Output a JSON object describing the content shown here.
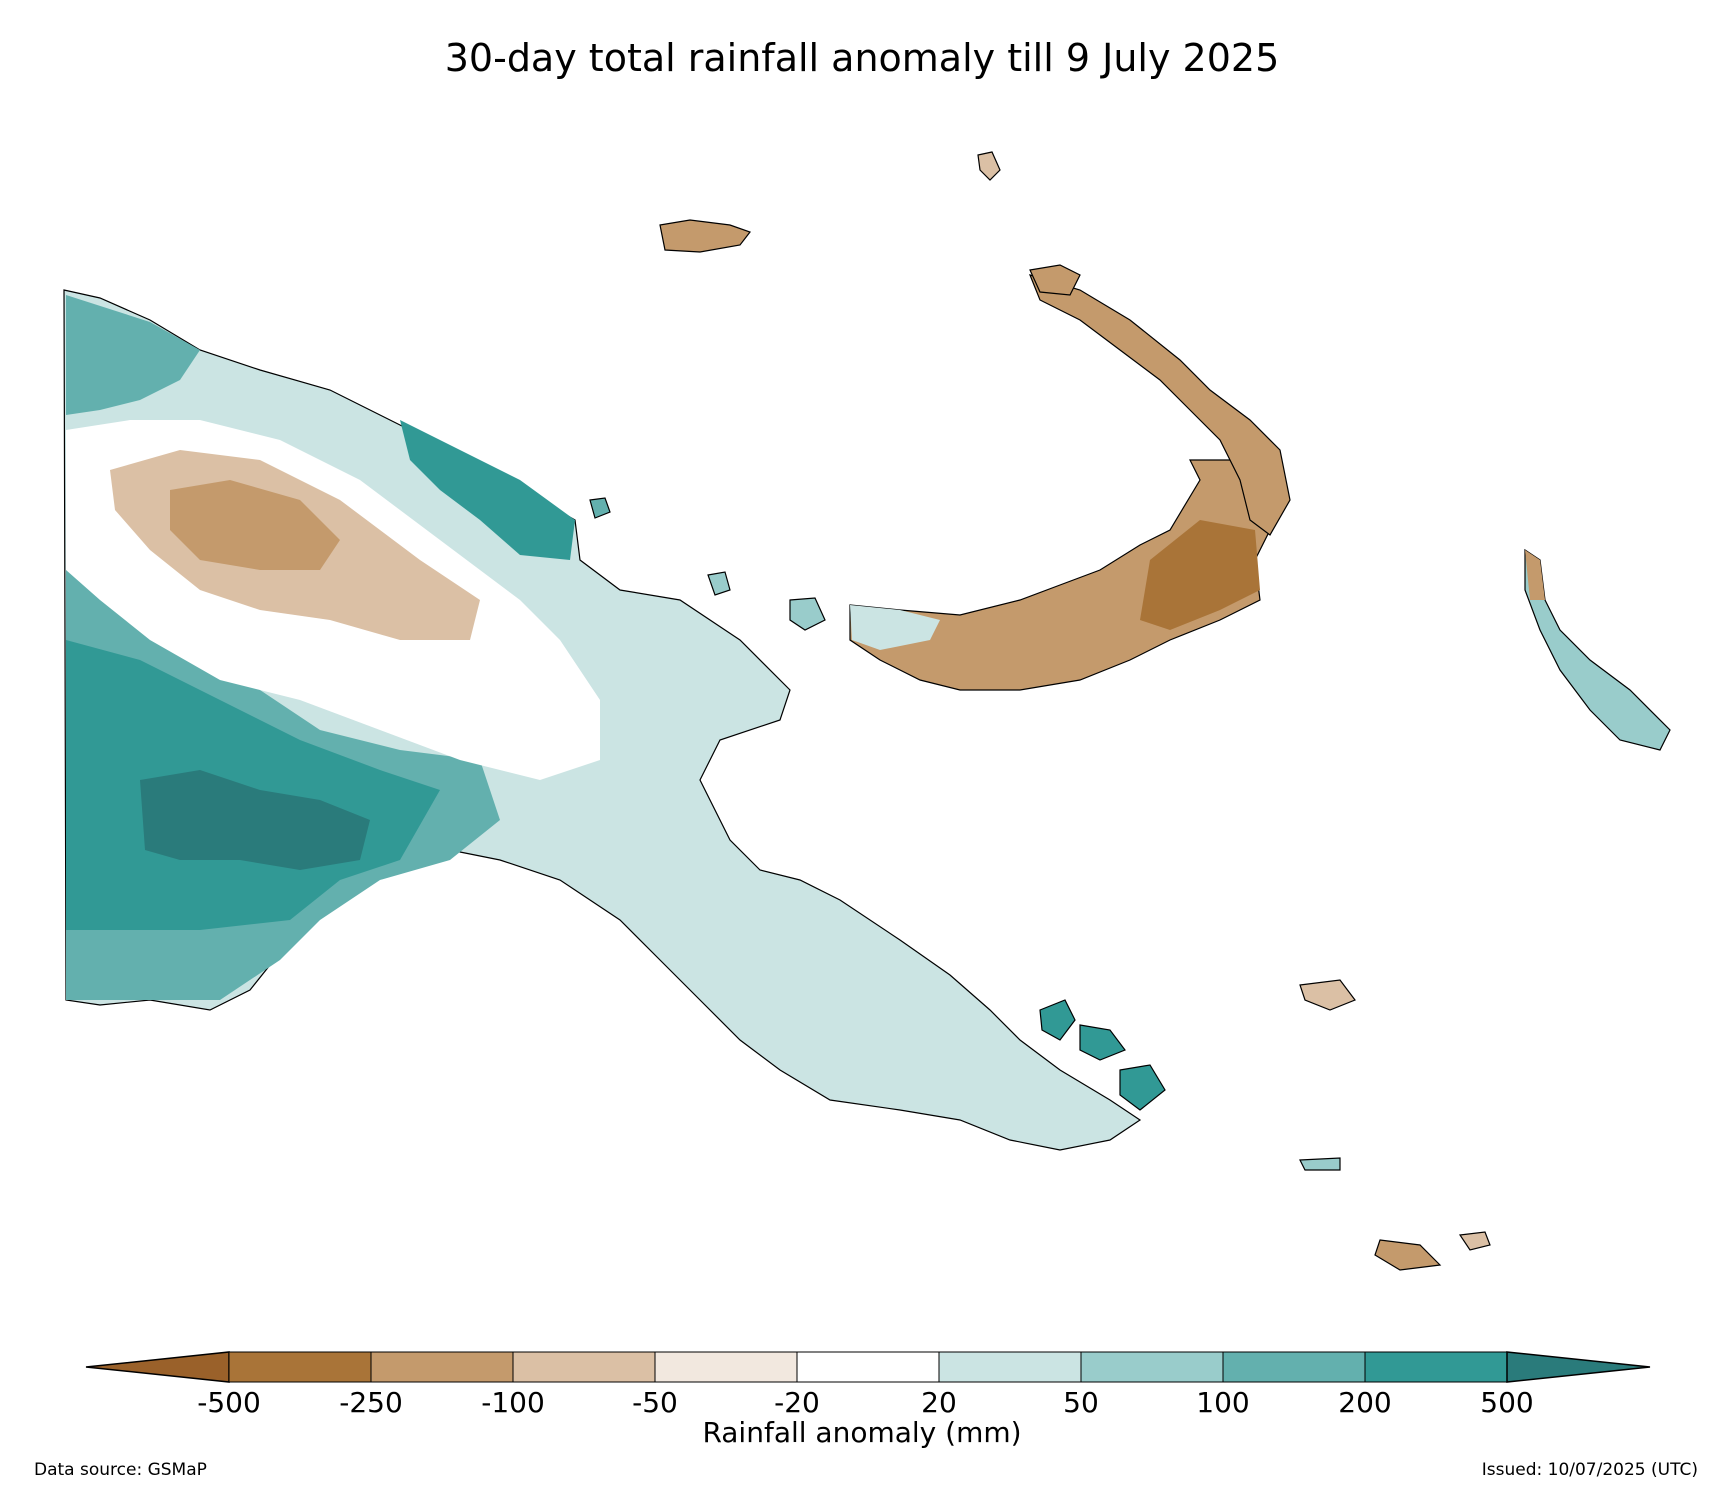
{
  "title": "30-day total rainfall anomaly till 9 July 2025",
  "colorbar": {
    "label": "Rainfall anomaly (mm)",
    "ticks": [
      "-500",
      "-250",
      "-100",
      "-50",
      "-20",
      "20",
      "50",
      "100",
      "200",
      "500"
    ],
    "colors": {
      "lt_-500": "#9a612a",
      "-500_-250": "#a97438",
      "-250_-100": "#c49a6c",
      "-100_-50": "#dbc0a5",
      "-50_-20": "#f2e8df",
      "-20_20": "#ffffff",
      "20_50": "#cbe4e3",
      "50_100": "#99cccb",
      "100_200": "#63b0ae",
      "200_500": "#319995",
      "gt_500": "#2a7b7b"
    }
  },
  "footer": {
    "source": "Data source: GSMaP",
    "issued": "Issued: 10/07/2025 (UTC)"
  }
}
